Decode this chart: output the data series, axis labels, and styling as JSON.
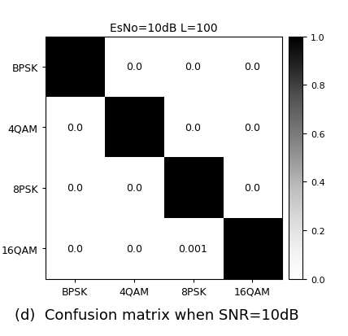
{
  "title": "EsNo=10dB L=100",
  "matrix": [
    [
      1.0,
      0.0,
      0.0,
      0.0
    ],
    [
      0.0,
      1.0,
      0.0,
      0.0
    ],
    [
      0.0,
      0.0,
      1.0,
      0.0
    ],
    [
      0.0,
      0.0,
      0.001,
      1.0
    ]
  ],
  "classes": [
    "BPSK",
    "4QAM",
    "8PSK",
    "16QAM"
  ],
  "xlabel_classes": [
    "BPSK",
    "4QAM",
    "8PSK",
    "16QAM"
  ],
  "text_values": [
    [
      "",
      "0.0",
      "0.0",
      "0.0"
    ],
    [
      "0.0",
      "",
      "0.0",
      "0.0"
    ],
    [
      "0.0",
      "0.0",
      "",
      "0.0"
    ],
    [
      "0.0",
      "0.0",
      "0.001",
      ""
    ]
  ],
  "caption": "(d)  Confusion matrix when SNR=10dB",
  "cmap": "Greys",
  "vmin": 0.0,
  "vmax": 1.0,
  "colorbar_ticks": [
    0.0,
    0.2,
    0.4,
    0.6,
    0.8,
    1.0
  ],
  "text_color_light": "white",
  "text_color_dark": "black",
  "text_fontsize": 9,
  "title_fontsize": 10,
  "caption_fontsize": 13,
  "fig_width": 4.28,
  "fig_height": 4.14
}
